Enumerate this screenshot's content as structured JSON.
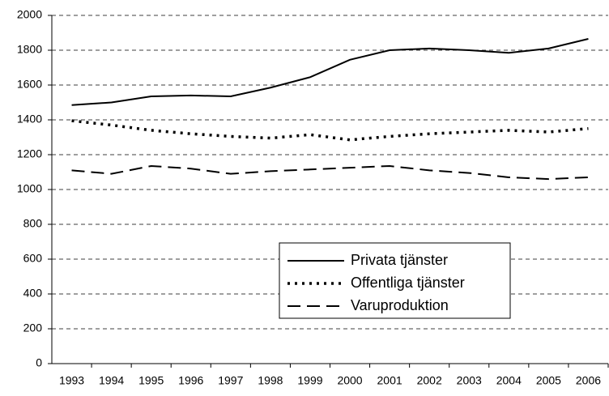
{
  "chart_data": {
    "type": "line",
    "categories": [
      "1993",
      "1994",
      "1995",
      "1996",
      "1997",
      "1998",
      "1999",
      "2000",
      "2001",
      "2002",
      "2003",
      "2004",
      "2005",
      "2006"
    ],
    "series": [
      {
        "name": "Privata tjänster",
        "color": "#000000",
        "style": "solid",
        "values": [
          1485,
          1500,
          1535,
          1540,
          1535,
          1585,
          1645,
          1745,
          1800,
          1810,
          1800,
          1785,
          1810,
          1865
        ]
      },
      {
        "name": "Offentliga tjänster",
        "color": "#000000",
        "style": "dotted",
        "values": [
          1395,
          1370,
          1340,
          1320,
          1305,
          1295,
          1315,
          1285,
          1305,
          1320,
          1330,
          1340,
          1330,
          1350
        ]
      },
      {
        "name": "Varuproduktion",
        "color": "#000000",
        "style": "dashed",
        "values": [
          1110,
          1090,
          1135,
          1120,
          1090,
          1105,
          1115,
          1125,
          1135,
          1110,
          1095,
          1070,
          1060,
          1070
        ]
      }
    ],
    "ylim": [
      0,
      2000
    ],
    "yticks": [
      0,
      200,
      400,
      600,
      800,
      1000,
      1200,
      1400,
      1600,
      1800,
      2000
    ],
    "grid": true
  }
}
